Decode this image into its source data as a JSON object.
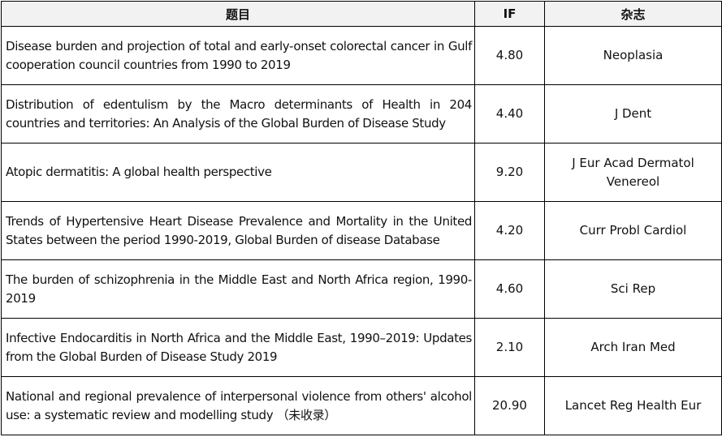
{
  "table": {
    "headers": {
      "title": "题目",
      "if": "IF",
      "journal": "杂志"
    },
    "rows": [
      {
        "title": "Disease burden and projection of total and early-onset colorectal cancer in Gulf cooperation council countries from 1990 to 2019",
        "if": "4.80",
        "journal": "Neoplasia"
      },
      {
        "title": "Distribution of edentulism by the Macro determinants of Health in 204 countries and territories: An Analysis of the Global Burden of Disease Study",
        "if": "4.40",
        "journal": "J Dent"
      },
      {
        "title": "Atopic dermatitis: A global health perspective",
        "if": "9.20",
        "journal": "J Eur Acad Dermatol Venereol"
      },
      {
        "title": "Trends of Hypertensive Heart Disease Prevalence and Mortality in the United States between the period 1990-2019, Global Burden of disease Database",
        "if": "4.20",
        "journal": "Curr Probl Cardiol"
      },
      {
        "title": "The burden of schizophrenia in the Middle East and North Africa region, 1990-2019",
        "if": "4.60",
        "journal": "Sci Rep"
      },
      {
        "title": "Infective Endocarditis in North Africa and the Middle East, 1990–2019: Updates from the Global Burden of Disease Study 2019",
        "if": "2.10",
        "journal": "Arch Iran Med"
      },
      {
        "title": "National and regional prevalence of interpersonal violence from others' alcohol use: a systematic review and modelling study （未收录）",
        "if": "20.90",
        "journal": "Lancet Reg Health Eur"
      }
    ]
  }
}
